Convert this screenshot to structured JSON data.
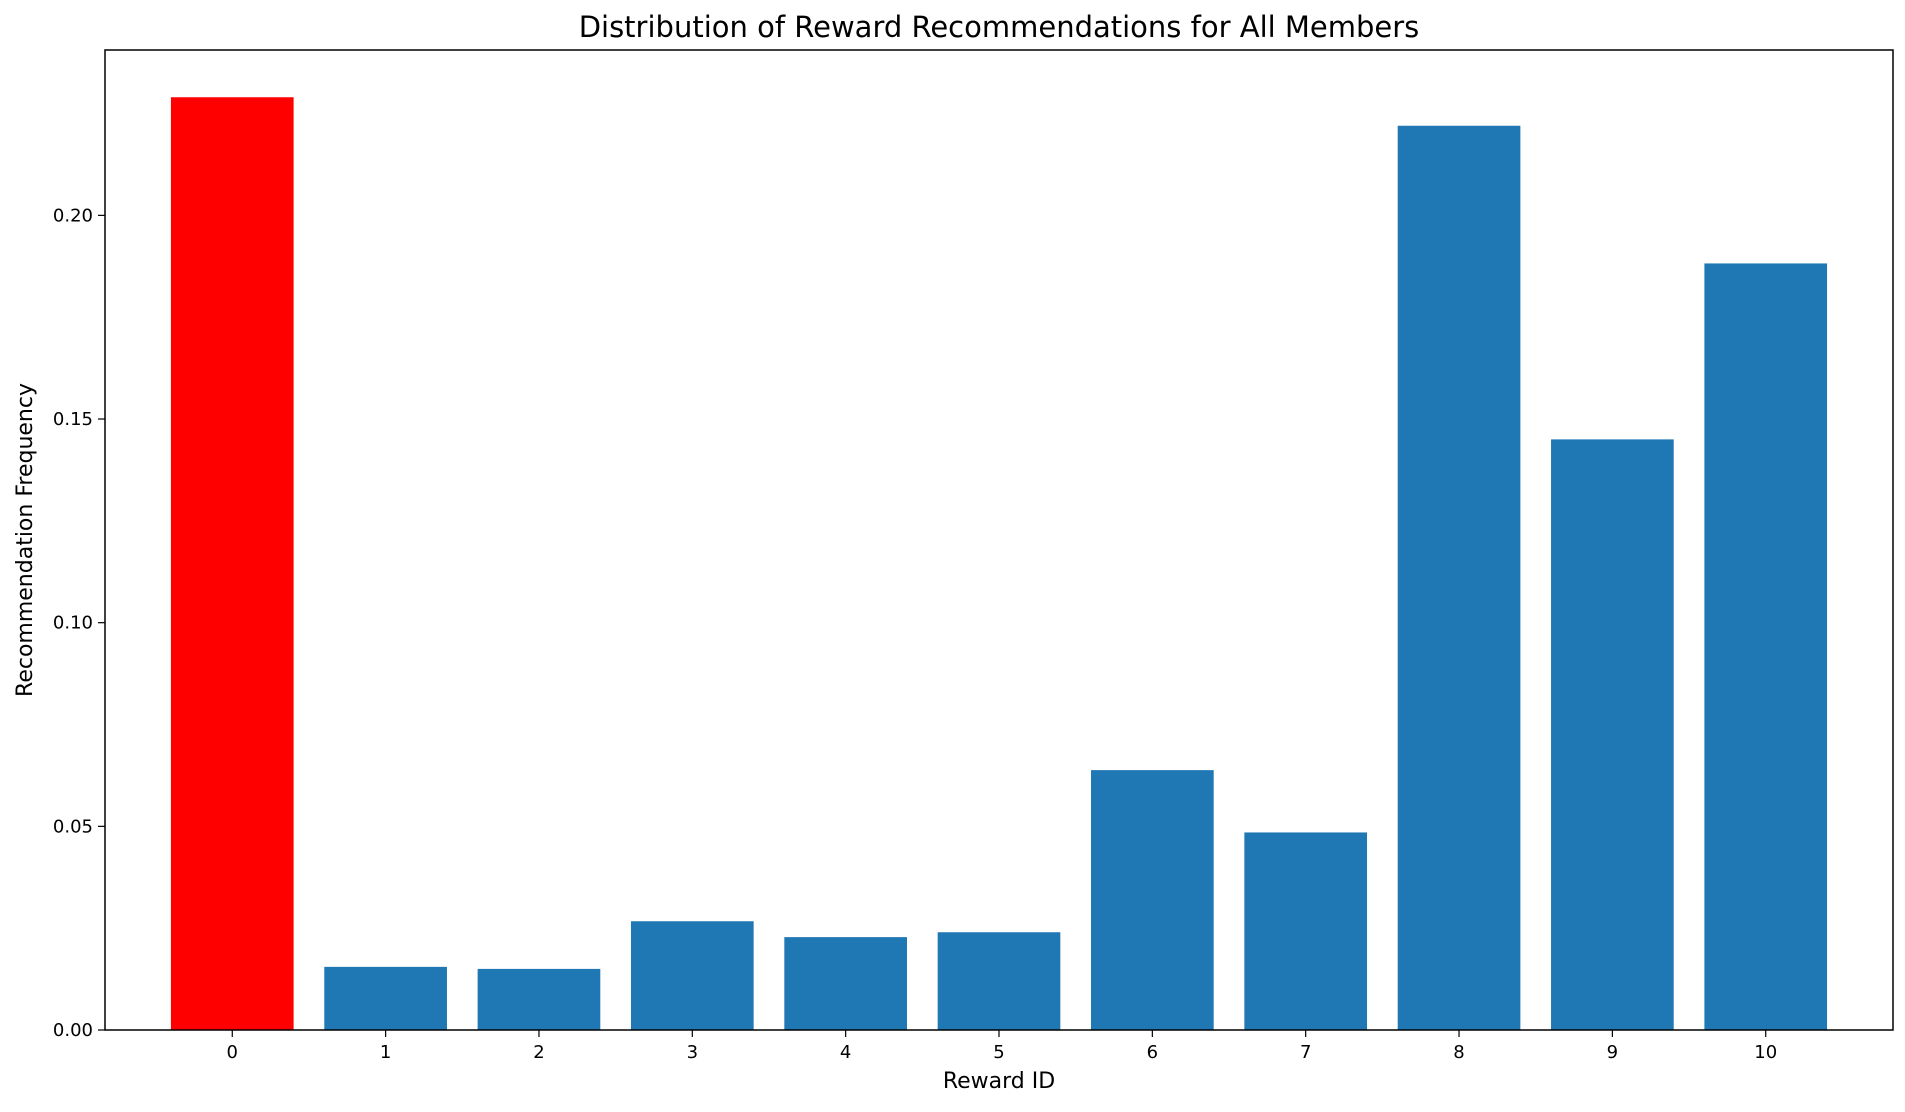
{
  "chart_data": {
    "type": "bar",
    "title": "Distribution of Reward Recommendations for All Members",
    "xlabel": "Reward ID",
    "ylabel": "Recommendation Frequency",
    "categories": [
      "0",
      "1",
      "2",
      "3",
      "4",
      "5",
      "6",
      "7",
      "8",
      "9",
      "10"
    ],
    "values": [
      0.229,
      0.0155,
      0.015,
      0.0267,
      0.0228,
      0.024,
      0.0638,
      0.0485,
      0.222,
      0.145,
      0.1882
    ],
    "highlight_index": 0,
    "highlight_color": "#ff0000",
    "bar_color": "#1f77b4",
    "ylim": [
      0,
      0.2406
    ],
    "yticks": [
      0.0,
      0.05,
      0.1,
      0.15,
      0.2
    ],
    "ytick_labels": [
      "0.00",
      "0.05",
      "0.10",
      "0.15",
      "0.20"
    ],
    "grid": false,
    "legend": "none"
  }
}
